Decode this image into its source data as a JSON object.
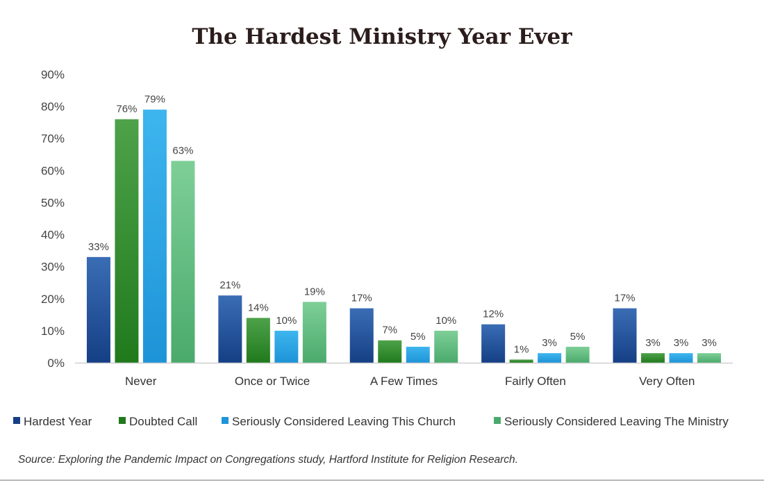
{
  "chart_data": {
    "type": "bar",
    "title": "The Hardest Ministry Year Ever",
    "categories": [
      "Never",
      "Once or Twice",
      "A Few Times",
      "Fairly Often",
      "Very Often"
    ],
    "series": [
      {
        "name": "Hardest Year",
        "values": [
          33,
          21,
          17,
          12,
          17
        ],
        "labels": [
          "33%",
          "21%",
          "17%",
          "12%",
          "17%"
        ],
        "color_top": "#3a6db5",
        "color_bottom": "#153f85"
      },
      {
        "name": "Doubted Call",
        "values": [
          76,
          14,
          7,
          1,
          3
        ],
        "labels": [
          "76%",
          "14%",
          "7%",
          "1%",
          "3%"
        ],
        "color_top": "#4ea24a",
        "color_bottom": "#207a1c"
      },
      {
        "name": "Seriously Considered Leaving This Church",
        "values": [
          79,
          10,
          5,
          3,
          3
        ],
        "labels": [
          "79%",
          "10%",
          "5%",
          "3%",
          "3%"
        ],
        "color_top": "#3db5ee",
        "color_bottom": "#1e94d8"
      },
      {
        "name": "Seriously Considered Leaving The Ministry",
        "values": [
          63,
          19,
          10,
          5,
          3
        ],
        "labels": [
          "63%",
          "19%",
          "10%",
          "5%",
          "3%"
        ],
        "color_top": "#7ecf97",
        "color_bottom": "#4aaa6c"
      }
    ],
    "ylim": [
      0,
      90
    ],
    "yticks": [
      "0%",
      "10%",
      "20%",
      "30%",
      "40%",
      "50%",
      "60%",
      "70%",
      "80%",
      "90%"
    ],
    "xlabel": "",
    "ylabel": "",
    "grid": false,
    "legend_position": "bottom",
    "source": "Source: Exploring the Pandemic Impact on Congregations study, Hartford Institute for Religion Research."
  }
}
